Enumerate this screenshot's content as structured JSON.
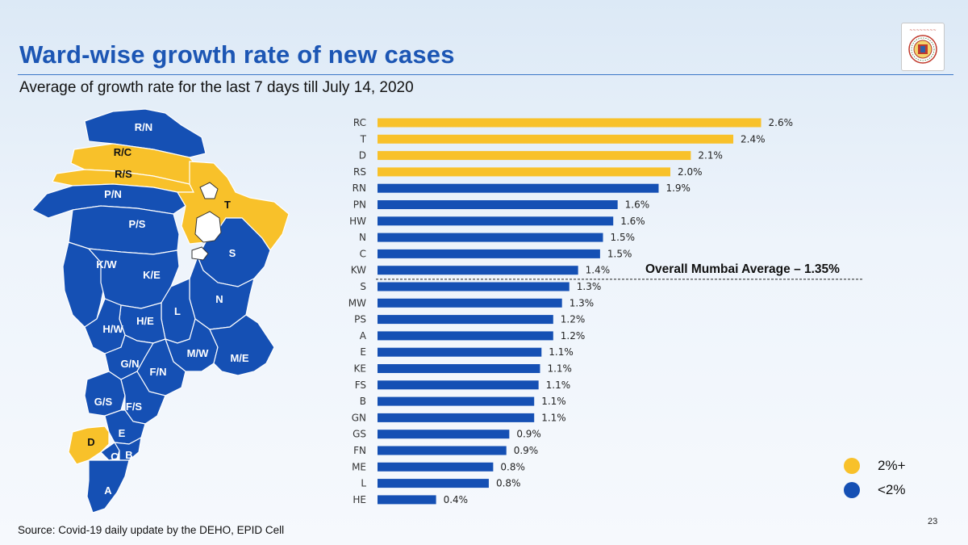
{
  "slide": {
    "title": "Ward-wise growth rate of new cases",
    "subtitle": "Average of growth rate for the last 7 days till July 14, 2020",
    "source": "Source: Covid-19 daily update by the DEHO, EPID Cell",
    "page_number": "23",
    "logo_icon": "municipal-corporation-logo-icon"
  },
  "colors": {
    "high": "#f8c12a",
    "low": "#1550b4",
    "title": "#1c56b4"
  },
  "legend": [
    {
      "label": "2%+",
      "color": "#f8c12a"
    },
    {
      "label": "<2%",
      "color": "#1550b4"
    }
  ],
  "chart_data": {
    "type": "bar",
    "orientation": "horizontal",
    "title": "Ward-wise growth rate of new cases",
    "xlabel": "",
    "ylabel": "",
    "xlim": [
      0,
      3.2
    ],
    "value_suffix": "%",
    "categories": [
      "RC",
      "T",
      "D",
      "RS",
      "RN",
      "PN",
      "HW",
      "N",
      "C",
      "KW",
      "S",
      "MW",
      "PS",
      "A",
      "E",
      "KE",
      "FS",
      "B",
      "GN",
      "GS",
      "FN",
      "ME",
      "L",
      "HE"
    ],
    "values": [
      2.6,
      2.4,
      2.1,
      2.0,
      1.9,
      1.6,
      1.6,
      1.5,
      1.5,
      1.4,
      1.3,
      1.3,
      1.2,
      1.2,
      1.1,
      1.1,
      1.1,
      1.1,
      1.1,
      0.9,
      0.9,
      0.8,
      0.8,
      0.4
    ],
    "bar_value": [
      2.62,
      2.43,
      2.14,
      2.0,
      1.92,
      1.64,
      1.61,
      1.54,
      1.52,
      1.37,
      1.31,
      1.26,
      1.2,
      1.2,
      1.12,
      1.11,
      1.1,
      1.07,
      1.07,
      0.9,
      0.88,
      0.79,
      0.76,
      0.4
    ],
    "threshold": 2.0,
    "reference_line": {
      "value": 1.35,
      "label": "Overall Mumbai Average – 1.35%"
    },
    "legend_position": "bottom-right"
  },
  "map": {
    "wards": [
      {
        "label": "R/N",
        "category": "low"
      },
      {
        "label": "R/C",
        "category": "high"
      },
      {
        "label": "R/S",
        "category": "high"
      },
      {
        "label": "P/N",
        "category": "low"
      },
      {
        "label": "T",
        "category": "high"
      },
      {
        "label": "P/S",
        "category": "low"
      },
      {
        "label": "S",
        "category": "low"
      },
      {
        "label": "K/W",
        "category": "low"
      },
      {
        "label": "K/E",
        "category": "low"
      },
      {
        "label": "N",
        "category": "low"
      },
      {
        "label": "L",
        "category": "low"
      },
      {
        "label": "H/E",
        "category": "low"
      },
      {
        "label": "H/W",
        "category": "low"
      },
      {
        "label": "M/W",
        "category": "low"
      },
      {
        "label": "M/E",
        "category": "low"
      },
      {
        "label": "G/N",
        "category": "low"
      },
      {
        "label": "F/N",
        "category": "low"
      },
      {
        "label": "G/S",
        "category": "low"
      },
      {
        "label": "F/S",
        "category": "low"
      },
      {
        "label": "E",
        "category": "low"
      },
      {
        "label": "D",
        "category": "high"
      },
      {
        "label": "C",
        "category": "low"
      },
      {
        "label": "B",
        "category": "low"
      },
      {
        "label": "A",
        "category": "low"
      }
    ]
  }
}
